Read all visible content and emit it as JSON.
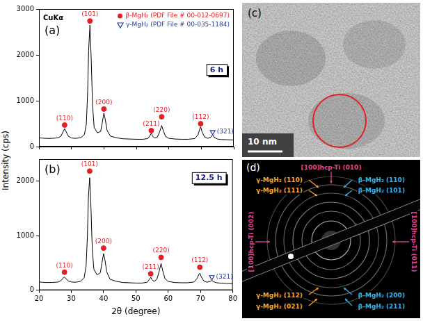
{
  "chart_data": [
    {
      "type": "line",
      "panel": "(a)",
      "note": "CuKα",
      "condition": "6 h",
      "x": [
        20,
        21,
        22,
        23,
        24,
        25,
        26,
        26.8,
        27.4,
        27.9,
        28.4,
        29,
        30,
        31,
        32,
        33,
        34,
        34.6,
        35.0,
        35.3,
        35.7,
        36.1,
        36.5,
        37,
        38,
        39,
        39.5,
        40.0,
        40.4,
        41,
        42,
        44,
        46,
        48,
        50,
        52,
        53.5,
        54.2,
        54.6,
        55.0,
        55.6,
        56.5,
        57.2,
        57.8,
        58.3,
        59,
        60,
        62,
        64,
        66,
        68,
        69.0,
        69.5,
        69.8,
        70.2,
        71,
        72,
        73.0,
        73.5,
        74.0,
        75,
        76,
        78,
        80
      ],
      "values": [
        190,
        185,
        180,
        178,
        180,
        185,
        195,
        230,
        320,
        390,
        320,
        230,
        190,
        180,
        185,
        200,
        260,
        500,
        1200,
        2100,
        2650,
        1900,
        900,
        420,
        300,
        330,
        520,
        730,
        600,
        350,
        230,
        190,
        170,
        165,
        160,
        160,
        175,
        240,
        290,
        230,
        185,
        210,
        330,
        460,
        350,
        220,
        180,
        165,
        160,
        160,
        175,
        260,
        380,
        430,
        330,
        210,
        180,
        210,
        260,
        200,
        165,
        155,
        150,
        145
      ],
      "color": "#000000",
      "xlim": [
        20,
        80
      ],
      "xticks": [
        20,
        30,
        40,
        50,
        60,
        70,
        80
      ],
      "ylim": [
        0,
        3000
      ],
      "yticks": [
        0,
        1000,
        2000,
        3000
      ],
      "grid": false,
      "tick_labels": "y",
      "legend": "top right",
      "markers": [
        {
          "name": "β-MgH₂ (PDF File # 00-012-0697)",
          "marker": "circle",
          "color": "#e31e24",
          "x": [
            27.9,
            35.7,
            40.0,
            54.6,
            57.8,
            69.8
          ],
          "y": [
            470,
            2740,
            820,
            350,
            650,
            500
          ],
          "labels": [
            "(110)",
            "(101)",
            "(200)",
            "(211)",
            "(220)",
            "(112)"
          ]
        },
        {
          "name": "γ-MgH₂ (PDF File # 00-035-1184)",
          "marker": "triangle_down",
          "color": "#2b3a9e",
          "x": [
            73.5
          ],
          "y": [
            320
          ],
          "labels": [
            "(321)"
          ]
        }
      ]
    },
    {
      "type": "line",
      "panel": "(b)",
      "condition": "12.5 h",
      "xlabel": "2θ (degree)",
      "x": [
        20,
        21,
        22,
        23,
        24,
        25,
        26,
        26.8,
        27.4,
        27.9,
        28.4,
        29,
        30,
        31,
        32,
        33,
        34,
        34.6,
        35.0,
        35.3,
        35.7,
        36.1,
        36.5,
        37,
        38,
        39,
        39.5,
        40.0,
        40.4,
        41,
        42,
        44,
        46,
        48,
        50,
        52,
        53.5,
        54.2,
        54.6,
        55.0,
        55.6,
        56.5,
        57.2,
        57.8,
        58.3,
        59,
        60,
        62,
        64,
        66,
        68,
        69.0,
        69.5,
        69.8,
        70.2,
        71,
        72,
        73.0,
        73.5,
        74.0,
        75,
        76,
        78,
        80
      ],
      "values": [
        150,
        145,
        140,
        140,
        140,
        145,
        150,
        175,
        215,
        240,
        210,
        170,
        150,
        145,
        150,
        165,
        230,
        450,
        1000,
        1700,
        2060,
        1500,
        750,
        380,
        280,
        320,
        500,
        670,
        560,
        330,
        200,
        160,
        140,
        135,
        130,
        130,
        145,
        200,
        235,
        190,
        160,
        200,
        340,
        490,
        360,
        210,
        160,
        140,
        135,
        135,
        150,
        220,
        290,
        310,
        250,
        170,
        145,
        160,
        180,
        155,
        135,
        130,
        125,
        120
      ],
      "color": "#000000",
      "xlim": [
        20,
        80
      ],
      "xticks": [
        20,
        30,
        40,
        50,
        60,
        70,
        80
      ],
      "ylim": [
        0,
        2400
      ],
      "yticks": [
        0,
        1000,
        2000
      ],
      "grid": false,
      "markers": [
        {
          "marker": "circle",
          "color": "#e31e24",
          "x": [
            27.9,
            35.7,
            40.0,
            54.6,
            57.8,
            69.8
          ],
          "y": [
            330,
            2180,
            770,
            300,
            600,
            420
          ],
          "labels": [
            "(110)",
            "(101)",
            "(200)",
            "(211)",
            "(220)",
            "(112)"
          ]
        },
        {
          "marker": "triangle_down",
          "color": "#2b3a9e",
          "x": [
            73.5
          ],
          "y": [
            240
          ],
          "labels": [
            "(321)"
          ]
        }
      ]
    }
  ],
  "shared_ylabel": "Intensity (cps)",
  "images": [
    {
      "panel": "(c)",
      "scale_bar": "10 nm"
    },
    {
      "panel": "(d)",
      "labels": [
        {
          "text": "[100]hcp-Ti (010)",
          "color": "#e8449a"
        },
        {
          "text": "[100]hcp-Ti (002)",
          "color": "#e8449a"
        },
        {
          "text": "[100]hcp-Ti (011)",
          "color": "#e8449a"
        },
        {
          "text": "γ-MgH₂ (110)",
          "color": "#f5a623"
        },
        {
          "text": "γ-MgH₂ (111)",
          "color": "#f5a623"
        },
        {
          "text": "β-MgH₂ (110)",
          "color": "#3ab0e6"
        },
        {
          "text": "β-MgH₂ (101)",
          "color": "#3ab0e6"
        },
        {
          "text": "γ-MgH₂ (112)",
          "color": "#f5a623"
        },
        {
          "text": "γ-MgH₂ (021)",
          "color": "#f5a623"
        },
        {
          "text": "β-MgH₂ (200)",
          "color": "#3ab0e6"
        },
        {
          "text": "β-MgH₂ (211)",
          "color": "#3ab0e6"
        }
      ]
    }
  ]
}
